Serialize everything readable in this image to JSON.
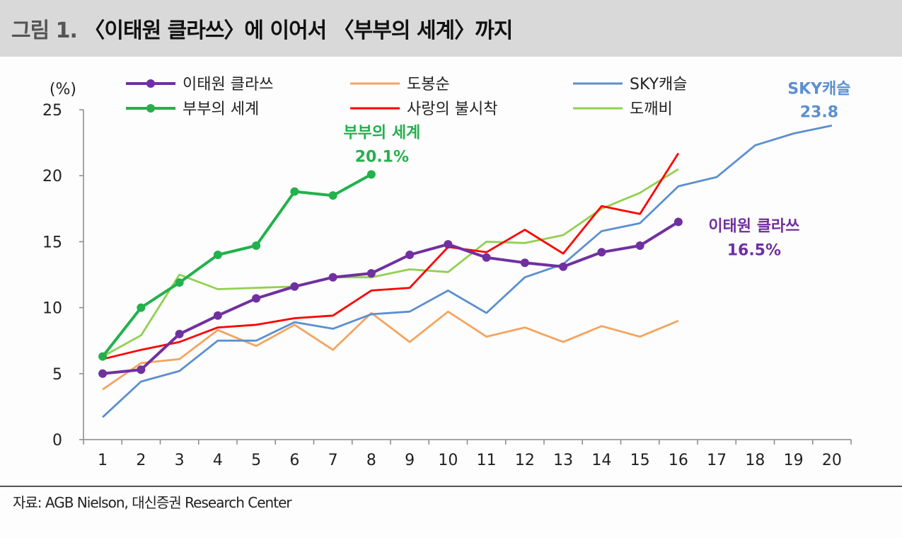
{
  "header": {
    "figure_label": "그림 1.",
    "title": "〈이태원 클라쓰〉에 이어서 〈부부의 세계〉까지"
  },
  "source": "자료: AGB Nielson, 대신증권 Research Center",
  "chart_data": {
    "type": "line",
    "ylabel": "(%)",
    "xlabel": "",
    "xlim": [
      1,
      20
    ],
    "ylim": [
      0,
      25
    ],
    "yticks": [
      0,
      5,
      10,
      15,
      20,
      25
    ],
    "xticks": [
      1,
      2,
      3,
      4,
      5,
      6,
      7,
      8,
      9,
      10,
      11,
      12,
      13,
      14,
      15,
      16,
      17,
      18,
      19,
      20
    ],
    "grid": false,
    "legend_position": "top",
    "series": [
      {
        "name": "이태원 클라쓰",
        "color": "#7030a0",
        "markers": true,
        "x": [
          1,
          2,
          3,
          4,
          5,
          6,
          7,
          8,
          9,
          10,
          11,
          12,
          13,
          14,
          15,
          16
        ],
        "values": [
          5.0,
          5.3,
          8.0,
          9.4,
          10.7,
          11.6,
          12.3,
          12.6,
          14.0,
          14.8,
          13.8,
          13.4,
          13.1,
          14.2,
          14.7,
          16.5
        ]
      },
      {
        "name": "부부의 세계",
        "color": "#22b14c",
        "markers": true,
        "x": [
          1,
          2,
          3,
          4,
          5,
          6,
          7,
          8
        ],
        "values": [
          6.3,
          10.0,
          11.9,
          14.0,
          14.7,
          18.8,
          18.5,
          20.1
        ]
      },
      {
        "name": "도봉순",
        "color": "#f4a460",
        "markers": false,
        "x": [
          1,
          2,
          3,
          4,
          5,
          6,
          7,
          8,
          9,
          10,
          11,
          12,
          13,
          14,
          15,
          16
        ],
        "values": [
          3.8,
          5.8,
          6.1,
          8.3,
          7.1,
          8.7,
          6.8,
          9.6,
          7.4,
          9.7,
          7.8,
          8.5,
          7.4,
          8.6,
          7.8,
          9.0
        ]
      },
      {
        "name": "사랑의 불시착",
        "color": "#ff0000",
        "markers": false,
        "x": [
          1,
          2,
          3,
          4,
          5,
          6,
          7,
          8,
          9,
          10,
          11,
          12,
          13,
          14,
          15,
          16
        ],
        "values": [
          6.1,
          6.8,
          7.4,
          8.5,
          8.7,
          9.2,
          9.4,
          11.3,
          11.5,
          14.6,
          14.2,
          15.9,
          14.1,
          17.7,
          17.1,
          21.7
        ]
      },
      {
        "name": "SKY캐슬",
        "color": "#5b8fd0",
        "markers": false,
        "x": [
          1,
          2,
          3,
          4,
          5,
          6,
          7,
          8,
          9,
          10,
          11,
          12,
          13,
          14,
          15,
          16,
          17,
          18,
          19,
          20
        ],
        "values": [
          1.7,
          4.4,
          5.2,
          7.5,
          7.5,
          8.9,
          8.4,
          9.5,
          9.7,
          11.3,
          9.6,
          12.3,
          13.3,
          15.8,
          16.4,
          19.2,
          19.9,
          22.3,
          23.2,
          23.8
        ]
      },
      {
        "name": "도깨비",
        "color": "#92d050",
        "markers": false,
        "x": [
          1,
          2,
          3,
          4,
          5,
          6,
          7,
          8,
          9,
          10,
          11,
          12,
          13,
          14,
          15,
          16
        ],
        "values": [
          6.3,
          7.9,
          12.5,
          11.4,
          11.5,
          11.6,
          12.3,
          12.3,
          12.9,
          12.7,
          15.0,
          14.9,
          15.5,
          17.5,
          18.7,
          20.5
        ]
      }
    ],
    "annotations": [
      {
        "series": "부부의 세계",
        "line1": "부부의 세계",
        "line2": "20.1%",
        "color": "#22b14c"
      },
      {
        "series": "이태원 클라쓰",
        "line1": "이태원 클라쓰",
        "line2": "16.5%",
        "color": "#7030a0"
      },
      {
        "series": "SKY캐슬",
        "line1": "SKY캐슬",
        "line2": "23.8",
        "color": "#5b8fd0"
      }
    ]
  }
}
